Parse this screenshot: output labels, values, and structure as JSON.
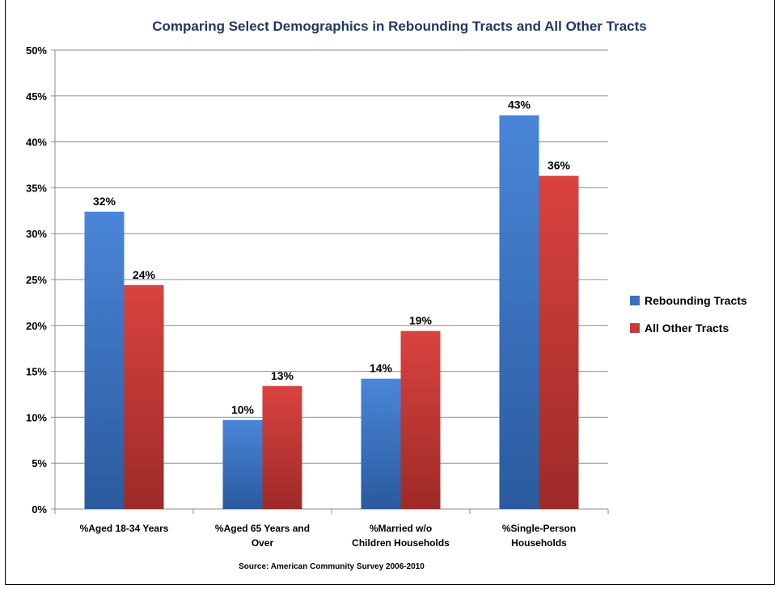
{
  "chart_data": {
    "type": "bar",
    "title": "Comparing Select Demographics in Rebounding Tracts and All Other Tracts",
    "categories": [
      [
        "%Aged 18-34 Years"
      ],
      [
        "%Aged 65 Years and",
        "Over"
      ],
      [
        "%Married w/o",
        "Children Households"
      ],
      [
        "%Single-Person",
        "Households"
      ]
    ],
    "series": [
      {
        "name": "Rebounding Tracts",
        "values": [
          32.4,
          9.7,
          14.2,
          42.9
        ],
        "labels": [
          "32%",
          "10%",
          "14%",
          "43%"
        ],
        "color": "#3b72c0"
      },
      {
        "name": "All Other Tracts",
        "values": [
          24.4,
          13.4,
          19.4,
          36.3
        ],
        "labels": [
          "24%",
          "13%",
          "19%",
          "36%"
        ],
        "color": "#c83a36"
      }
    ],
    "yticks": [
      "0%",
      "5%",
      "10%",
      "15%",
      "20%",
      "25%",
      "30%",
      "35%",
      "40%",
      "45%",
      "50%"
    ],
    "ylim": [
      0,
      50
    ],
    "grid": true,
    "legend_position": "right",
    "source": "Source: American Community Survey 2006-2010"
  }
}
